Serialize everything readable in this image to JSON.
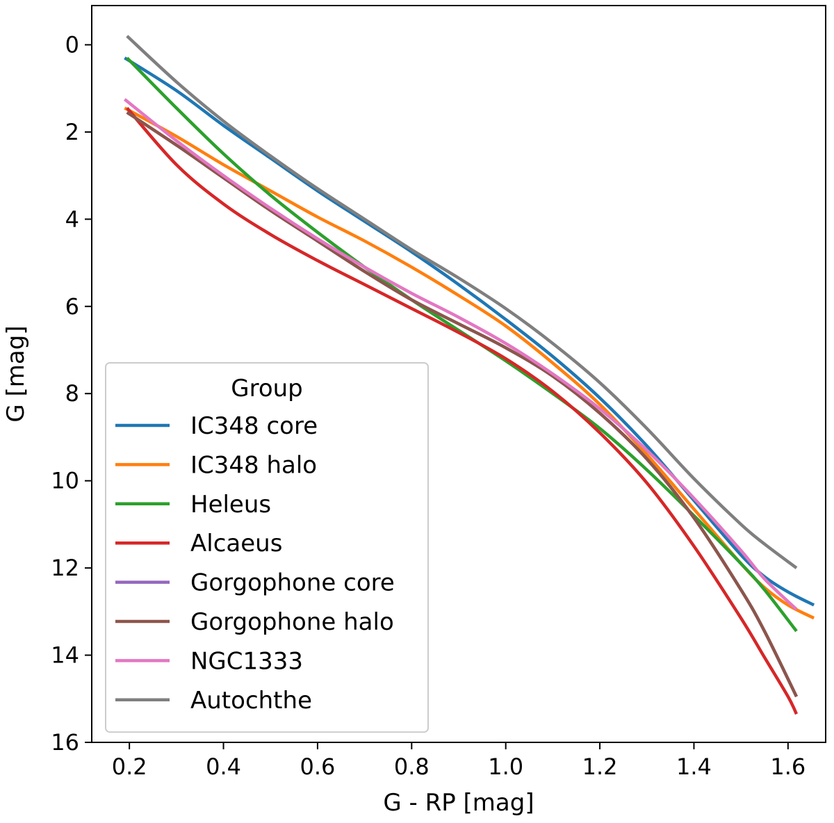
{
  "chart_data": {
    "type": "line",
    "title": "",
    "xlabel": "G - RP [mag]",
    "ylabel": "G [mag]",
    "xlim": [
      0.12,
      1.68
    ],
    "ylim": [
      16.0,
      -0.9
    ],
    "y_inverted": true,
    "grid": false,
    "xticks": [
      0.2,
      0.4,
      0.6,
      0.8,
      1.0,
      1.2,
      1.4,
      1.6
    ],
    "xtick_labels": [
      "0.2",
      "0.4",
      "0.6",
      "0.8",
      "1.0",
      "1.2",
      "1.4",
      "1.6"
    ],
    "yticks": [
      0,
      2,
      4,
      6,
      8,
      10,
      12,
      14,
      16
    ],
    "ytick_labels": [
      "0",
      "2",
      "4",
      "6",
      "8",
      "10",
      "12",
      "14",
      "16"
    ],
    "legend": {
      "title": "Group",
      "position": "lower-left"
    },
    "series": [
      {
        "name": "IC348 core",
        "color": "#1f77b4",
        "x": [
          0.19,
          0.3,
          0.4,
          0.5,
          0.6,
          0.7,
          0.8,
          0.9,
          1.0,
          1.1,
          1.2,
          1.3,
          1.4,
          1.5,
          1.55,
          1.6,
          1.655
        ],
        "y": [
          0.3,
          1.05,
          1.85,
          2.6,
          3.35,
          4.05,
          4.75,
          5.5,
          6.3,
          7.15,
          8.1,
          9.2,
          10.45,
          11.7,
          12.2,
          12.55,
          12.85
        ]
      },
      {
        "name": "IC348 halo",
        "color": "#ff7f0e",
        "x": [
          0.19,
          0.3,
          0.4,
          0.5,
          0.6,
          0.7,
          0.8,
          0.9,
          1.0,
          1.1,
          1.2,
          1.3,
          1.4,
          1.5,
          1.55,
          1.6,
          1.655
        ],
        "y": [
          1.45,
          2.1,
          2.75,
          3.35,
          3.95,
          4.5,
          5.1,
          5.75,
          6.45,
          7.3,
          8.25,
          9.4,
          10.65,
          11.9,
          12.45,
          12.85,
          13.15
        ]
      },
      {
        "name": "Heleus",
        "color": "#2ca02c",
        "x": [
          0.195,
          0.3,
          0.4,
          0.5,
          0.6,
          0.7,
          0.8,
          0.9,
          1.0,
          1.1,
          1.2,
          1.3,
          1.4,
          1.5,
          1.55,
          1.618
        ],
        "y": [
          0.3,
          1.45,
          2.5,
          3.45,
          4.3,
          5.1,
          5.85,
          6.55,
          7.25,
          8.0,
          8.8,
          9.75,
          10.8,
          11.9,
          12.5,
          13.45
        ]
      },
      {
        "name": "Alcaeus",
        "color": "#d62728",
        "x": [
          0.195,
          0.3,
          0.4,
          0.5,
          0.6,
          0.7,
          0.8,
          0.9,
          1.0,
          1.1,
          1.2,
          1.3,
          1.4,
          1.5,
          1.55,
          1.6,
          1.618
        ],
        "y": [
          1.45,
          2.75,
          3.65,
          4.35,
          4.95,
          5.5,
          6.05,
          6.6,
          7.2,
          7.95,
          8.9,
          10.05,
          11.5,
          13.15,
          14.05,
          14.95,
          15.35
        ]
      },
      {
        "name": "Gorgophone core",
        "color": "#9467bd",
        "x": [
          0.195,
          0.3,
          0.4,
          0.5,
          0.6,
          0.7,
          0.8,
          0.9,
          1.0,
          1.1,
          1.2,
          1.3,
          1.4,
          1.5,
          1.55,
          1.618
        ],
        "y": [
          1.55,
          2.3,
          3.05,
          3.8,
          4.5,
          5.2,
          5.85,
          6.4,
          6.95,
          7.6,
          8.45,
          9.5,
          10.85,
          12.5,
          13.45,
          14.95
        ]
      },
      {
        "name": "Gorgophone halo",
        "color": "#8c564b",
        "x": [
          0.195,
          0.3,
          0.4,
          0.5,
          0.6,
          0.7,
          0.8,
          0.9,
          1.0,
          1.1,
          1.2,
          1.3,
          1.4,
          1.5,
          1.55,
          1.618
        ],
        "y": [
          1.55,
          2.3,
          3.05,
          3.8,
          4.5,
          5.2,
          5.85,
          6.4,
          6.95,
          7.6,
          8.45,
          9.5,
          10.85,
          12.5,
          13.45,
          14.95
        ]
      },
      {
        "name": "NGC1333",
        "color": "#e377c2",
        "x": [
          0.19,
          0.3,
          0.4,
          0.5,
          0.6,
          0.7,
          0.8,
          0.9,
          1.0,
          1.1,
          1.2,
          1.3,
          1.4,
          1.5,
          1.55,
          1.618
        ],
        "y": [
          1.25,
          2.2,
          3.0,
          3.75,
          4.45,
          5.1,
          5.7,
          6.25,
          6.85,
          7.55,
          8.35,
          9.3,
          10.4,
          11.6,
          12.25,
          12.95
        ]
      },
      {
        "name": "Autochthe",
        "color": "#7f7f7f",
        "x": [
          0.195,
          0.3,
          0.4,
          0.5,
          0.6,
          0.7,
          0.8,
          0.9,
          1.0,
          1.1,
          1.2,
          1.3,
          1.4,
          1.5,
          1.55,
          1.618
        ],
        "y": [
          -0.2,
          0.85,
          1.75,
          2.55,
          3.3,
          4.0,
          4.7,
          5.35,
          6.05,
          6.85,
          7.75,
          8.8,
          9.95,
          11.0,
          11.45,
          12.0
        ]
      }
    ]
  }
}
